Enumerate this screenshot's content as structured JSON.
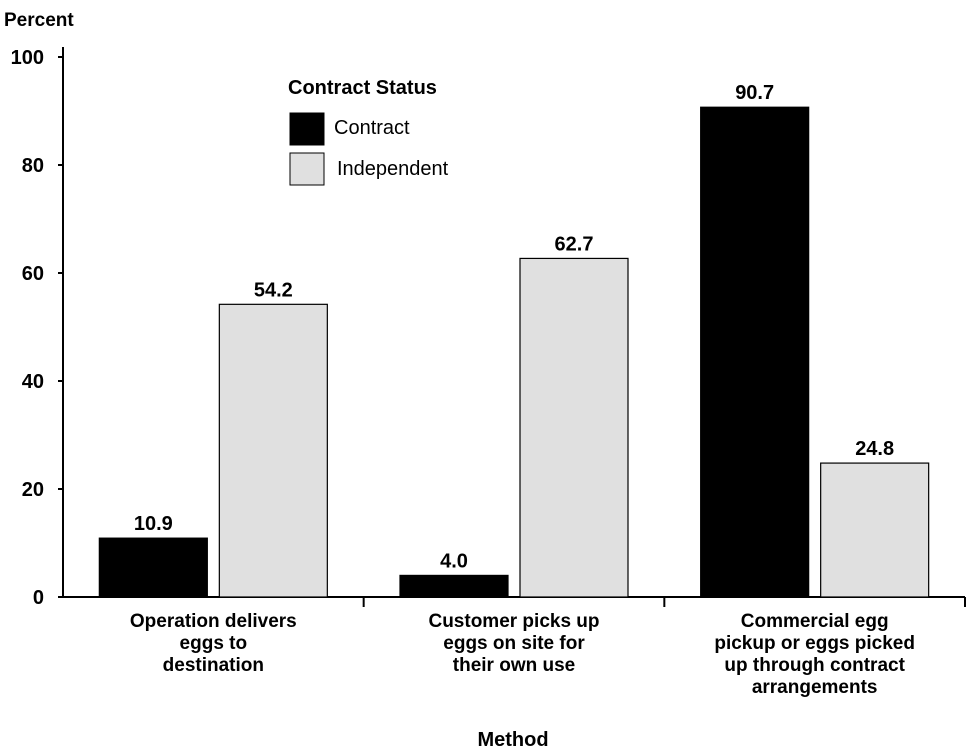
{
  "chart_data": {
    "type": "bar",
    "ylabel": "Percent",
    "xlabel": "Method",
    "ylim": [
      0,
      100
    ],
    "yticks": [
      0,
      20,
      40,
      60,
      80,
      100
    ],
    "categories": [
      [
        "Operation delivers",
        "eggs to",
        "destination"
      ],
      [
        "Customer picks up",
        "eggs on site for",
        "their own use"
      ],
      [
        "Commercial egg",
        "pickup or eggs picked",
        "up through contract",
        "arrangements"
      ]
    ],
    "series": [
      {
        "name": "Contract",
        "color": "#000000",
        "values": [
          10.9,
          4.0,
          90.7
        ],
        "labels": [
          "10.9",
          "4.0",
          "90.7"
        ]
      },
      {
        "name": "Independent",
        "color": "#e0e0e0",
        "values": [
          54.2,
          62.7,
          24.8
        ],
        "labels": [
          "54.2",
          "62.7",
          "24.8"
        ]
      }
    ],
    "legend": {
      "title": "Contract Status",
      "placement": "top-left"
    },
    "grid": false
  }
}
